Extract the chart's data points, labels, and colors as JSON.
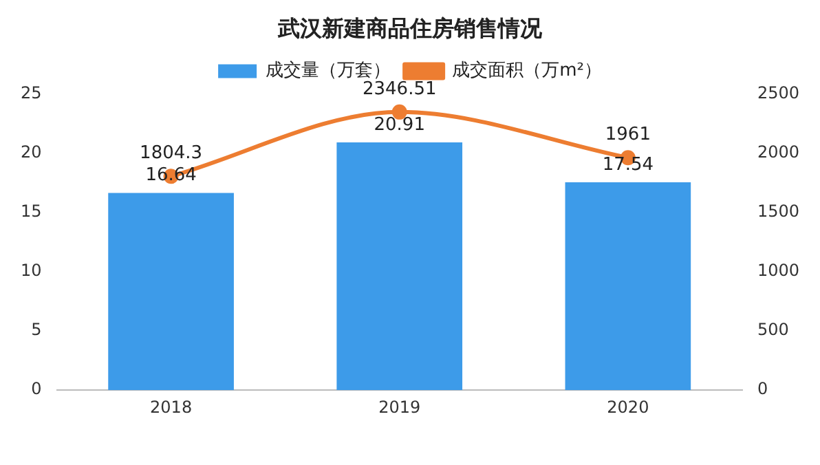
{
  "chart_data": {
    "type": "bar",
    "title": "武汉新建商品住房销售情况",
    "categories": [
      "2018",
      "2019",
      "2020"
    ],
    "series": [
      {
        "name": "成交量（万套）",
        "color": "#3d9be9",
        "values": [
          16.64,
          20.91,
          17.54
        ]
      },
      {
        "name": "成交面积（万m²）",
        "type": "line",
        "axis": "y2",
        "color": "#ed7d31",
        "values": [
          1804.3,
          2346.51,
          1961
        ]
      }
    ],
    "ylim": [
      0,
      25
    ],
    "yticks": [
      0,
      5,
      10,
      15,
      20,
      25
    ],
    "y2lim": [
      0,
      2500
    ],
    "y2ticks": [
      0,
      500,
      1000,
      1500,
      2000,
      2500
    ],
    "data_labels": true,
    "legend": "top",
    "grid": false,
    "marker": "circle",
    "line_style": "solid"
  }
}
